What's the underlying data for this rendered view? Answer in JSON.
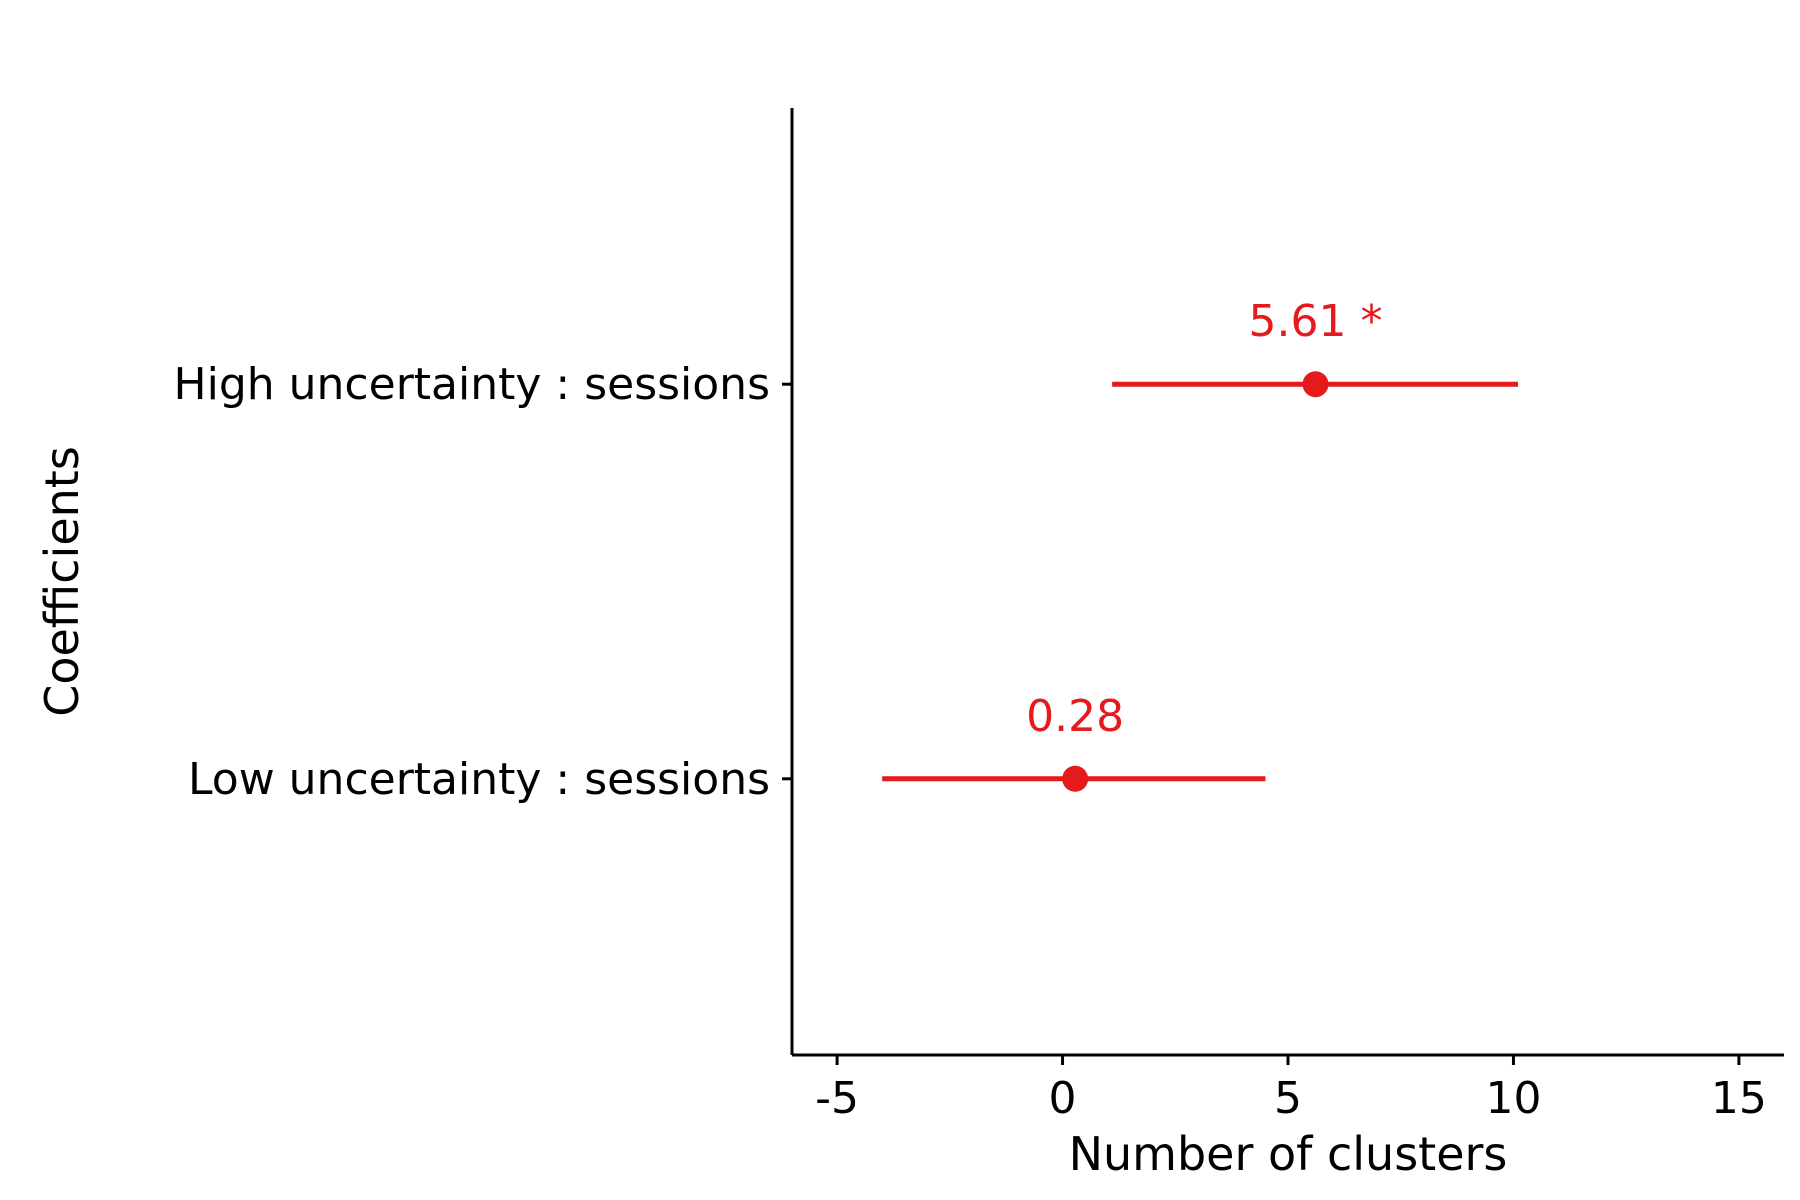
{
  "chart_data": {
    "type": "scatter",
    "subtype": "coefficient-plot-horizontal",
    "title": "",
    "xlabel": "Number of clusters",
    "ylabel": "Coefficients",
    "xlim": [
      -6,
      16
    ],
    "x_ticks": [
      -5,
      0,
      5,
      10,
      15
    ],
    "x_tick_labels": [
      "-5",
      "0",
      "5",
      "10",
      "15"
    ],
    "categories": [
      "High uncertainty : sessions",
      "Low uncertainty : sessions"
    ],
    "series": [
      {
        "color": "#e41a1c",
        "points": [
          {
            "category": "High uncertainty : sessions",
            "estimate": 5.61,
            "ci_low": 1.1,
            "ci_high": 10.1,
            "label": "5.61 *"
          },
          {
            "category": "Low uncertainty : sessions",
            "estimate": 0.28,
            "ci_low": -4.0,
            "ci_high": 4.5,
            "label": "0.28"
          }
        ]
      }
    ],
    "grid": false,
    "legend": "none"
  }
}
